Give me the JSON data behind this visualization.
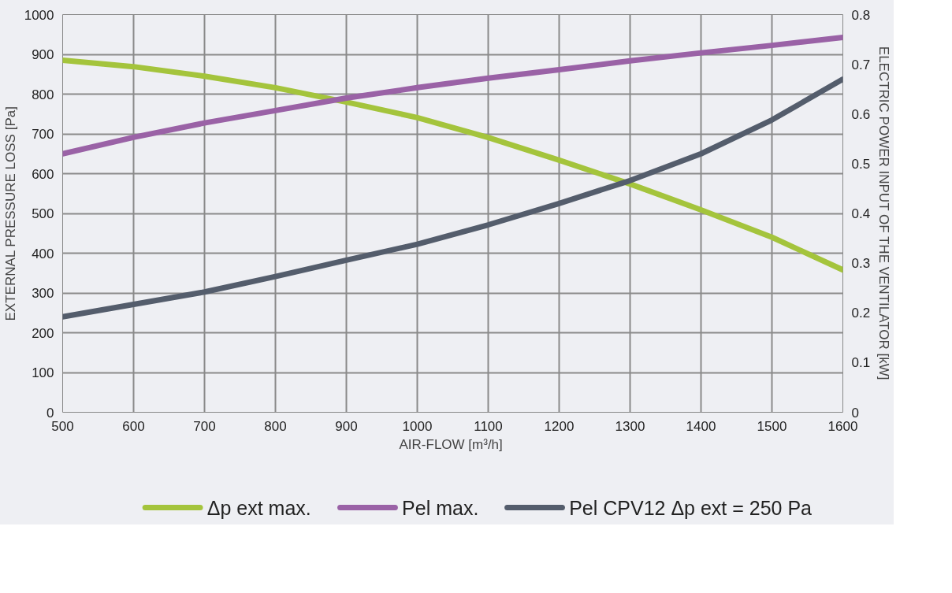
{
  "chart_data": {
    "type": "line",
    "xlabel": "AIR-FLOW  [m³/h]",
    "ylabel": "EXTERNAL PRESSURE LOSS [Pa]",
    "y2label": "ELECTRIC POWER INPUT OF THE VENTILATOR [kW]",
    "x": [
      500,
      600,
      700,
      800,
      900,
      1000,
      1100,
      1200,
      1300,
      1400,
      1500,
      1600
    ],
    "xlim": [
      500,
      1600
    ],
    "xticks": [
      500,
      600,
      700,
      800,
      900,
      1000,
      1100,
      1200,
      1300,
      1400,
      1500,
      1600
    ],
    "ylim": [
      0,
      1000
    ],
    "yticks": [
      0,
      100,
      200,
      300,
      400,
      500,
      600,
      700,
      800,
      900,
      1000
    ],
    "y2lim": [
      0,
      0.8
    ],
    "y2ticks": [
      0,
      0.1,
      0.2,
      0.3,
      0.4,
      0.5,
      0.6,
      0.7,
      0.8
    ],
    "grid": true,
    "legend": "bottom",
    "marker": "none",
    "line_style": "solid",
    "series": [
      {
        "name": "Δp ext max.",
        "color": "#a4c43c",
        "values": [
          885,
          869,
          845,
          816,
          780,
          741,
          691,
          634,
          574,
          509,
          440,
          358
        ]
      },
      {
        "name": "Pel max.",
        "color": "#9a62a6",
        "axis": "y2",
        "values": [
          0.52,
          0.553,
          0.582,
          0.607,
          0.632,
          0.653,
          0.672,
          0.689,
          0.707,
          0.723,
          0.738,
          0.754
        ]
      },
      {
        "name": "Pel CPV12 Δp ext = 250 Pa",
        "color": "#545d6c",
        "axis": "y2",
        "values": [
          0.192,
          0.217,
          0.242,
          0.273,
          0.306,
          0.338,
          0.377,
          0.42,
          0.466,
          0.52,
          0.588,
          0.67
        ]
      }
    ]
  }
}
